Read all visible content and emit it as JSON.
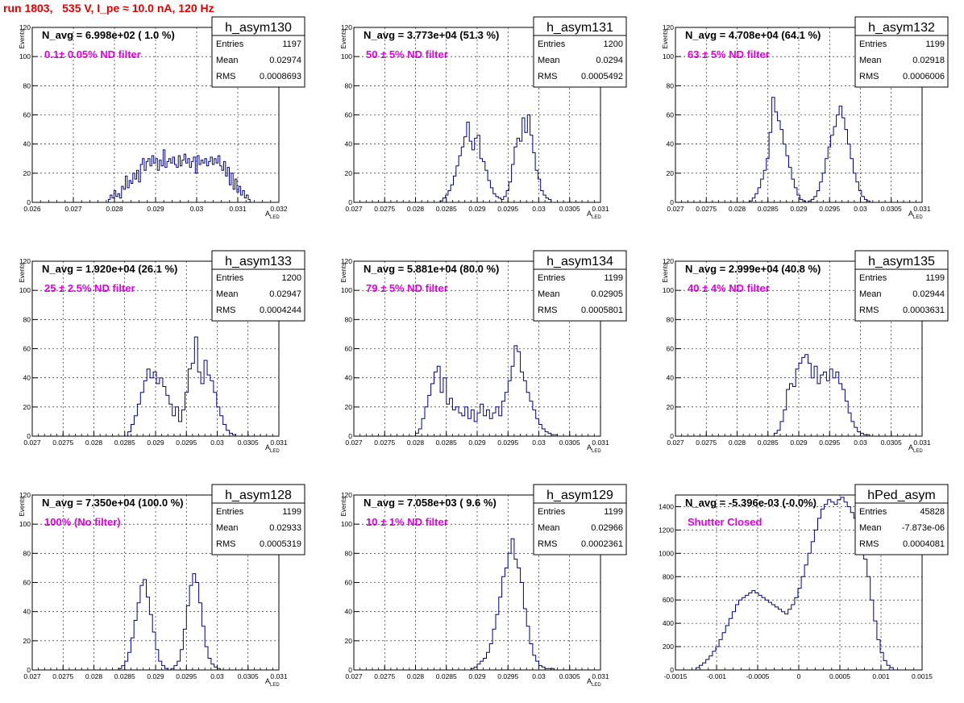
{
  "canvas_title": "run 1803,   535 V, I_pe ≈ 10.0 nA, 120 Hz",
  "colors": {
    "title": "#e00000",
    "filter_label": "#e000e0",
    "histogram": "#000080",
    "grid": "#000000"
  },
  "stats_labels": {
    "entries": "Entries",
    "mean": "Mean",
    "rms": "RMS"
  },
  "chart_data": [
    {
      "type": "bar",
      "name": "h_asym130",
      "navg": "N_avg = 6.998e+02 ( 1.0 %)",
      "filter": "0.1± 0.05% ND filter",
      "stats": {
        "entries": "1197",
        "mean": "0.02974",
        "rms": "0.0008693"
      },
      "ylabel": "Events",
      "xlabel": "A",
      "xlabel_sub": "LED",
      "xlim": [
        0.026,
        0.032
      ],
      "ylim": [
        0,
        120
      ],
      "grid": true,
      "xticks": [
        0.026,
        0.027,
        0.028,
        0.029,
        0.03,
        0.031,
        0.032
      ],
      "xtick_labels": [
        "0.026",
        "0.027",
        "0.028",
        "0.029",
        "0.03",
        "0.031",
        "0.032"
      ],
      "yticks": [
        0,
        20,
        40,
        60,
        80,
        100,
        120
      ],
      "ytick_labels": [
        "0",
        "20",
        "40",
        "60",
        "80",
        "100",
        "120"
      ],
      "xrange": [
        0.02785,
        0.0313
      ],
      "values": [
        2,
        5,
        3,
        8,
        4,
        6,
        3,
        11,
        9,
        18,
        10,
        15,
        13,
        20,
        16,
        22,
        14,
        26,
        30,
        22,
        28,
        30,
        25,
        32,
        27,
        30,
        22,
        29,
        25,
        36,
        24,
        28,
        30,
        27,
        31,
        26,
        24,
        32,
        25,
        29,
        33,
        27,
        30,
        24,
        28,
        31,
        20,
        32,
        26,
        29,
        27,
        30,
        25,
        28,
        31,
        26,
        30,
        27,
        32,
        25,
        22,
        28,
        18,
        24,
        12,
        20,
        9,
        16,
        7,
        11,
        5,
        8,
        3,
        5,
        2
      ]
    },
    {
      "type": "bar",
      "name": "h_asym131",
      "navg": "N_avg = 3.773e+04 (51.3 %)",
      "filter": "50 ± 5% ND filter",
      "stats": {
        "entries": "1200",
        "mean": "0.0294",
        "rms": "0.0005492"
      },
      "ylabel": "Events",
      "xlabel": "A",
      "xlabel_sub": "LED",
      "xlim": [
        0.027,
        0.031
      ],
      "ylim": [
        0,
        120
      ],
      "grid": true,
      "xticks": [
        0.027,
        0.0275,
        0.028,
        0.0285,
        0.029,
        0.0295,
        0.03,
        0.0305,
        0.031
      ],
      "xtick_labels": [
        "0.027",
        "0.0275",
        "0.028",
        "0.0285",
        "0.029",
        "0.0295",
        "0.03",
        "0.0305",
        "0.031"
      ],
      "yticks": [
        0,
        20,
        40,
        60,
        80,
        100,
        120
      ],
      "ytick_labels": [
        "0",
        "20",
        "40",
        "60",
        "80",
        "100",
        "120"
      ],
      "xrange": [
        0.0284,
        0.0302
      ],
      "values": [
        1,
        3,
        5,
        8,
        12,
        18,
        25,
        32,
        38,
        45,
        55,
        42,
        36,
        44,
        46,
        30,
        28,
        22,
        15,
        10,
        6,
        4,
        3,
        2,
        4,
        8,
        14,
        26,
        38,
        44,
        42,
        58,
        48,
        60,
        46,
        34,
        22,
        16,
        8,
        5,
        3,
        2
      ]
    },
    {
      "type": "bar",
      "name": "h_asym132",
      "navg": "N_avg = 4.708e+04 (64.1 %)",
      "filter": "63 ± 5% ND filter",
      "stats": {
        "entries": "1199",
        "mean": "0.02918",
        "rms": "0.0006006"
      },
      "ylabel": "Events",
      "xlabel": "A",
      "xlabel_sub": "LED",
      "xlim": [
        0.027,
        0.031
      ],
      "ylim": [
        0,
        120
      ],
      "grid": true,
      "xticks": [
        0.027,
        0.0275,
        0.028,
        0.0285,
        0.029,
        0.0295,
        0.03,
        0.0305,
        0.031
      ],
      "xtick_labels": [
        "0.027",
        "0.0275",
        "0.028",
        "0.0285",
        "0.029",
        "0.0295",
        "0.03",
        "0.0305",
        "0.031"
      ],
      "yticks": [
        0,
        20,
        40,
        60,
        80,
        100,
        120
      ],
      "ytick_labels": [
        "0",
        "20",
        "40",
        "60",
        "80",
        "100",
        "120"
      ],
      "xrange": [
        0.0282,
        0.0302
      ],
      "values": [
        1,
        3,
        6,
        10,
        16,
        22,
        30,
        48,
        72,
        62,
        56,
        50,
        40,
        32,
        24,
        16,
        10,
        5,
        2,
        1,
        0,
        1,
        2,
        4,
        8,
        14,
        20,
        30,
        38,
        46,
        52,
        60,
        66,
        58,
        50,
        40,
        30,
        20,
        14,
        8,
        4,
        2,
        1,
        0
      ]
    },
    {
      "type": "bar",
      "name": "h_asym133",
      "navg": "N_avg = 1.920e+04 (26.1 %)",
      "filter": "25 ± 2.5% ND filter",
      "stats": {
        "entries": "1200",
        "mean": "0.02947",
        "rms": "0.0004244"
      },
      "ylabel": "Events",
      "xlabel": "A",
      "xlabel_sub": "LED",
      "xlim": [
        0.027,
        0.031
      ],
      "ylim": [
        0,
        120
      ],
      "grid": true,
      "xticks": [
        0.027,
        0.0275,
        0.028,
        0.0285,
        0.029,
        0.0295,
        0.03,
        0.0305,
        0.031
      ],
      "xtick_labels": [
        "0.027",
        "0.0275",
        "0.028",
        "0.0285",
        "0.029",
        "0.0295",
        "0.03",
        "0.0305",
        "0.031"
      ],
      "yticks": [
        0,
        20,
        40,
        60,
        80,
        100,
        120
      ],
      "ytick_labels": [
        "0",
        "20",
        "40",
        "60",
        "80",
        "100",
        "120"
      ],
      "xrange": [
        0.02855,
        0.0303
      ],
      "values": [
        3,
        8,
        14,
        22,
        30,
        38,
        46,
        40,
        44,
        36,
        40,
        34,
        28,
        22,
        14,
        20,
        10,
        18,
        30,
        46,
        50,
        68,
        44,
        36,
        52,
        42,
        38,
        30,
        20,
        14,
        8,
        4,
        2,
        1
      ]
    },
    {
      "type": "bar",
      "name": "h_asym134",
      "navg": "N_avg = 5.881e+04 (80.0 %)",
      "filter": "79 ± 5% ND filter",
      "stats": {
        "entries": "1199",
        "mean": "0.02905",
        "rms": "0.0005801"
      },
      "ylabel": "Events",
      "xlabel": "A",
      "xlabel_sub": "LED",
      "xlim": [
        0.027,
        0.031
      ],
      "ylim": [
        0,
        120
      ],
      "grid": true,
      "xticks": [
        0.027,
        0.0275,
        0.028,
        0.0285,
        0.029,
        0.0295,
        0.03,
        0.0305,
        0.031
      ],
      "xtick_labels": [
        "0.027",
        "0.0275",
        "0.028",
        "0.0285",
        "0.029",
        "0.0295",
        "0.03",
        "0.0305",
        "0.031"
      ],
      "yticks": [
        0,
        20,
        40,
        60,
        80,
        100,
        120
      ],
      "ytick_labels": [
        "0",
        "20",
        "40",
        "60",
        "80",
        "100",
        "120"
      ],
      "xrange": [
        0.028,
        0.0303
      ],
      "values": [
        2,
        5,
        12,
        20,
        28,
        36,
        44,
        48,
        30,
        40,
        22,
        26,
        18,
        20,
        16,
        14,
        20,
        12,
        18,
        10,
        16,
        22,
        14,
        18,
        12,
        16,
        20,
        14,
        24,
        30,
        38,
        48,
        62,
        58,
        44,
        38,
        30,
        24,
        18,
        12,
        8,
        5,
        3,
        2,
        1,
        1
      ]
    },
    {
      "type": "bar",
      "name": "h_asym135",
      "navg": "N_avg = 2.999e+04 (40.8 %)",
      "filter": "40 ± 4% ND filter",
      "stats": {
        "entries": "1199",
        "mean": "0.02944",
        "rms": "0.0003631"
      },
      "ylabel": "Events",
      "xlabel": "A",
      "xlabel_sub": "LED",
      "xlim": [
        0.027,
        0.031
      ],
      "ylim": [
        0,
        120
      ],
      "grid": true,
      "xticks": [
        0.027,
        0.0275,
        0.028,
        0.0285,
        0.029,
        0.0295,
        0.03,
        0.0305,
        0.031
      ],
      "xtick_labels": [
        "0.027",
        "0.0275",
        "0.028",
        "0.0285",
        "0.029",
        "0.0295",
        "0.03",
        "0.0305",
        "0.031"
      ],
      "yticks": [
        0,
        20,
        40,
        60,
        80,
        100,
        120
      ],
      "ytick_labels": [
        "0",
        "20",
        "40",
        "60",
        "80",
        "100",
        "120"
      ],
      "xrange": [
        0.0286,
        0.0302
      ],
      "values": [
        2,
        4,
        10,
        18,
        32,
        36,
        34,
        46,
        50,
        54,
        56,
        50,
        40,
        48,
        36,
        42,
        44,
        38,
        46,
        40,
        44,
        36,
        32,
        24,
        16,
        10,
        6,
        3,
        2,
        1,
        1,
        0
      ]
    },
    {
      "type": "bar",
      "name": "h_asym128",
      "navg": "N_avg = 7.350e+04 (100.0 %)",
      "filter": "100% (No filter)",
      "stats": {
        "entries": "1199",
        "mean": "0.02933",
        "rms": "0.0005319"
      },
      "ylabel": "Events",
      "xlabel": "A",
      "xlabel_sub": "LED",
      "xlim": [
        0.027,
        0.031
      ],
      "ylim": [
        0,
        120
      ],
      "grid": true,
      "xticks": [
        0.027,
        0.0275,
        0.028,
        0.0285,
        0.029,
        0.0295,
        0.03,
        0.0305,
        0.031
      ],
      "xtick_labels": [
        "0.027",
        "0.0275",
        "0.028",
        "0.0285",
        "0.029",
        "0.0295",
        "0.03",
        "0.0305",
        "0.031"
      ],
      "yticks": [
        0,
        20,
        40,
        60,
        80,
        100,
        120
      ],
      "ytick_labels": [
        "0",
        "20",
        "40",
        "60",
        "80",
        "100",
        "120"
      ],
      "xrange": [
        0.0284,
        0.0302
      ],
      "values": [
        1,
        3,
        6,
        12,
        22,
        34,
        46,
        58,
        62,
        50,
        38,
        26,
        14,
        6,
        3,
        1,
        0,
        1,
        3,
        6,
        14,
        28,
        44,
        58,
        66,
        60,
        46,
        30,
        16,
        8,
        4,
        2,
        1,
        0,
        0,
        0
      ]
    },
    {
      "type": "bar",
      "name": "h_asym129",
      "navg": "N_avg = 7.058e+03 ( 9.6 %)",
      "filter": "10 ± 1% ND filter",
      "stats": {
        "entries": "1199",
        "mean": "0.02966",
        "rms": "0.0002361"
      },
      "ylabel": "Events",
      "xlabel": "A",
      "xlabel_sub": "LED",
      "xlim": [
        0.027,
        0.031
      ],
      "ylim": [
        0,
        120
      ],
      "grid": true,
      "xticks": [
        0.027,
        0.0275,
        0.028,
        0.0285,
        0.029,
        0.0295,
        0.03,
        0.0305,
        0.031
      ],
      "xtick_labels": [
        "0.027",
        "0.0275",
        "0.028",
        "0.0285",
        "0.029",
        "0.0295",
        "0.03",
        "0.0305",
        "0.031"
      ],
      "yticks": [
        0,
        20,
        40,
        60,
        80,
        100,
        120
      ],
      "ytick_labels": [
        "0",
        "20",
        "40",
        "60",
        "80",
        "100",
        "120"
      ],
      "xrange": [
        0.0289,
        0.0304
      ],
      "values": [
        1,
        2,
        4,
        6,
        8,
        12,
        18,
        28,
        38,
        50,
        64,
        70,
        80,
        90,
        76,
        70,
        60,
        42,
        30,
        18,
        10,
        6,
        3,
        2,
        1,
        1,
        1,
        0,
        0,
        0
      ]
    },
    {
      "type": "bar",
      "name": "hPed_asym",
      "navg": "N_avg = -5.396e-03 (-0.0%)",
      "filter": "Shutter Closed",
      "stats": {
        "entries": "45828",
        "mean": "-7.873e-06",
        "rms": "0.0004081"
      },
      "ylabel": "",
      "xlabel": "",
      "xlabel_sub": "",
      "xlim": [
        -0.0015,
        0.0015
      ],
      "ylim": [
        0,
        1500
      ],
      "grid": true,
      "xticks": [
        -0.0015,
        -0.001,
        -0.0005,
        0,
        0.0005,
        0.001,
        0.0015
      ],
      "xtick_labels": [
        "-0.0015",
        "-0.001",
        "-0.0005",
        "0",
        "0.0005",
        "0.001",
        "0.0015"
      ],
      "yticks": [
        0,
        200,
        400,
        600,
        800,
        1000,
        1200,
        1400
      ],
      "ytick_labels": [
        "0",
        "200",
        "400",
        "600",
        "800",
        "1000",
        "1200",
        "1400"
      ],
      "xrange": [
        -0.00125,
        0.00115
      ],
      "values": [
        20,
        40,
        60,
        90,
        120,
        160,
        200,
        260,
        320,
        380,
        440,
        500,
        560,
        600,
        620,
        640,
        660,
        680,
        660,
        640,
        620,
        600,
        580,
        560,
        540,
        520,
        500,
        480,
        520,
        560,
        620,
        700,
        800,
        900,
        1000,
        1100,
        1200,
        1300,
        1380,
        1420,
        1460,
        1440,
        1420,
        1460,
        1480,
        1440,
        1400,
        1350,
        1300,
        1200,
        1100,
        950,
        800,
        600,
        420,
        260,
        150,
        80,
        40,
        20
      ]
    }
  ]
}
